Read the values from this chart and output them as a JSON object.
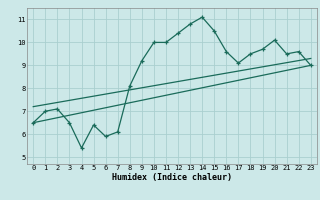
{
  "xlabel": "Humidex (Indice chaleur)",
  "ylabel": "",
  "bg_color": "#cce8e8",
  "line_color": "#1a6b5a",
  "grid_color": "#aacfcf",
  "main_x": [
    0,
    1,
    2,
    3,
    4,
    5,
    6,
    7,
    8,
    9,
    10,
    11,
    12,
    13,
    14,
    15,
    16,
    17,
    18,
    19,
    20,
    21,
    22,
    23
  ],
  "main_y": [
    6.5,
    7.0,
    7.1,
    6.5,
    5.4,
    6.4,
    5.9,
    6.1,
    8.1,
    9.2,
    10.0,
    10.0,
    10.4,
    10.8,
    11.1,
    10.5,
    9.6,
    9.1,
    9.5,
    9.7,
    10.1,
    9.5,
    9.6,
    9.0
  ],
  "trend1_x": [
    0,
    23
  ],
  "trend1_y": [
    6.5,
    9.0
  ],
  "trend2_x": [
    0,
    23
  ],
  "trend2_y": [
    7.2,
    9.3
  ],
  "xlim": [
    -0.5,
    23.5
  ],
  "ylim": [
    4.7,
    11.5
  ],
  "xticks": [
    0,
    1,
    2,
    3,
    4,
    5,
    6,
    7,
    8,
    9,
    10,
    11,
    12,
    13,
    14,
    15,
    16,
    17,
    18,
    19,
    20,
    21,
    22,
    23
  ],
  "yticks": [
    5,
    6,
    7,
    8,
    9,
    10,
    11
  ],
  "tick_fontsize": 5.0,
  "xlabel_fontsize": 6.0
}
